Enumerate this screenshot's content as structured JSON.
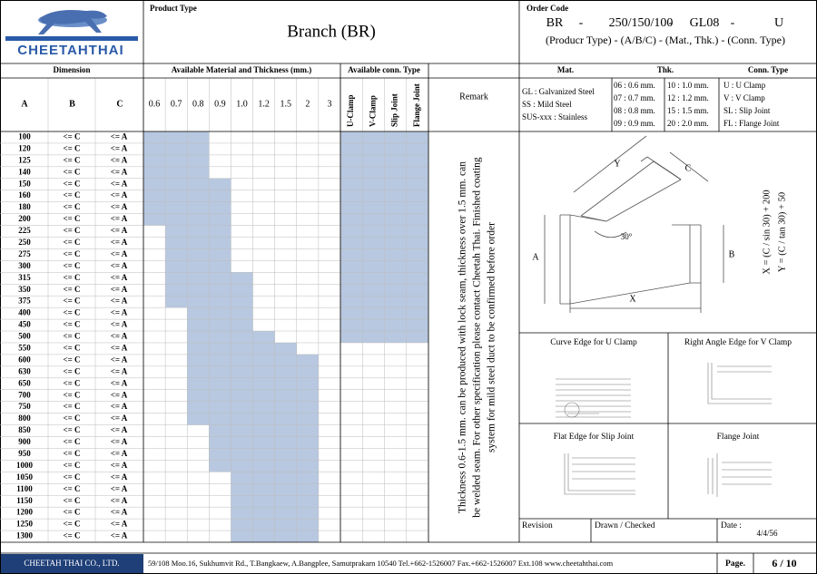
{
  "logo": {
    "brand": "CHEETAHTHAI"
  },
  "product_type": {
    "label": "Product Type",
    "value": "Branch (BR)"
  },
  "order_code": {
    "label": "Order Code",
    "code": [
      "BR",
      "-",
      "250/150/100",
      "-",
      "GL08",
      "-",
      "U"
    ],
    "legend": "(Producr Type) - (A/B/C) - (Mat., Thk.) - (Conn. Type)"
  },
  "table": {
    "headers": {
      "dimension": "Dimension",
      "material": "Available Material and Thickness (mm.)",
      "conn": "Available conn. Type",
      "remark": "Remark"
    },
    "columns": [
      "A",
      "B",
      "C"
    ],
    "thicknesses": [
      "0.6",
      "0.7",
      "0.8",
      "0.9",
      "1.0",
      "1.2",
      "1.5",
      "2",
      "3"
    ],
    "conn_types": [
      "U-Clamp",
      "V-Clamp",
      "Slip Joint",
      "Flange Joint"
    ],
    "rows": [
      {
        "a": "100",
        "b": "<= C",
        "c": "<= A",
        "available": [
          "0.6",
          "0.7",
          "0.8"
        ],
        "conn": true
      },
      {
        "a": "120",
        "b": "<= C",
        "c": "<= A",
        "available": [
          "0.6",
          "0.7",
          "0.8"
        ],
        "conn": true
      },
      {
        "a": "125",
        "b": "<= C",
        "c": "<= A",
        "available": [
          "0.6",
          "0.7",
          "0.8"
        ],
        "conn": true
      },
      {
        "a": "140",
        "b": "<= C",
        "c": "<= A",
        "available": [
          "0.6",
          "0.7",
          "0.8"
        ],
        "conn": true
      },
      {
        "a": "150",
        "b": "<= C",
        "c": "<= A",
        "available": [
          "0.6",
          "0.7",
          "0.8",
          "0.9"
        ],
        "conn": true
      },
      {
        "a": "160",
        "b": "<= C",
        "c": "<= A",
        "available": [
          "0.6",
          "0.7",
          "0.8",
          "0.9"
        ],
        "conn": true
      },
      {
        "a": "180",
        "b": "<= C",
        "c": "<= A",
        "available": [
          "0.6",
          "0.7",
          "0.8",
          "0.9"
        ],
        "conn": true
      },
      {
        "a": "200",
        "b": "<= C",
        "c": "<= A",
        "available": [
          "0.6",
          "0.7",
          "0.8",
          "0.9"
        ],
        "conn": true
      },
      {
        "a": "225",
        "b": "<= C",
        "c": "<= A",
        "available": [
          "0.7",
          "0.8",
          "0.9"
        ],
        "conn": true
      },
      {
        "a": "250",
        "b": "<= C",
        "c": "<= A",
        "available": [
          "0.7",
          "0.8",
          "0.9"
        ],
        "conn": true
      },
      {
        "a": "275",
        "b": "<= C",
        "c": "<= A",
        "available": [
          "0.7",
          "0.8",
          "0.9"
        ],
        "conn": true
      },
      {
        "a": "300",
        "b": "<= C",
        "c": "<= A",
        "available": [
          "0.7",
          "0.8",
          "0.9"
        ],
        "conn": true
      },
      {
        "a": "315",
        "b": "<= C",
        "c": "<= A",
        "available": [
          "0.7",
          "0.8",
          "0.9",
          "1.0"
        ],
        "conn": true
      },
      {
        "a": "350",
        "b": "<= C",
        "c": "<= A",
        "available": [
          "0.7",
          "0.8",
          "0.9",
          "1.0"
        ],
        "conn": true
      },
      {
        "a": "375",
        "b": "<= C",
        "c": "<= A",
        "available": [
          "0.7",
          "0.8",
          "0.9",
          "1.0"
        ],
        "conn": true
      },
      {
        "a": "400",
        "b": "<= C",
        "c": "<= A",
        "available": [
          "0.8",
          "0.9",
          "1.0"
        ],
        "conn": true
      },
      {
        "a": "450",
        "b": "<= C",
        "c": "<= A",
        "available": [
          "0.8",
          "0.9",
          "1.0"
        ],
        "conn": true
      },
      {
        "a": "500",
        "b": "<= C",
        "c": "<= A",
        "available": [
          "0.8",
          "0.9",
          "1.0",
          "1.2"
        ],
        "conn": true
      },
      {
        "a": "550",
        "b": "<= C",
        "c": "<= A",
        "available": [
          "0.8",
          "0.9",
          "1.0",
          "1.2",
          "1.5"
        ],
        "conn": false
      },
      {
        "a": "600",
        "b": "<= C",
        "c": "<= A",
        "available": [
          "0.8",
          "0.9",
          "1.0",
          "1.2",
          "1.5",
          "2"
        ],
        "conn": false
      },
      {
        "a": "630",
        "b": "<= C",
        "c": "<= A",
        "available": [
          "0.8",
          "0.9",
          "1.0",
          "1.2",
          "1.5",
          "2"
        ],
        "conn": false
      },
      {
        "a": "650",
        "b": "<= C",
        "c": "<= A",
        "available": [
          "0.8",
          "0.9",
          "1.0",
          "1.2",
          "1.5",
          "2"
        ],
        "conn": false
      },
      {
        "a": "700",
        "b": "<= C",
        "c": "<= A",
        "available": [
          "0.8",
          "0.9",
          "1.0",
          "1.2",
          "1.5",
          "2"
        ],
        "conn": false
      },
      {
        "a": "750",
        "b": "<= C",
        "c": "<= A",
        "available": [
          "0.8",
          "0.9",
          "1.0",
          "1.2",
          "1.5",
          "2"
        ],
        "conn": false
      },
      {
        "a": "800",
        "b": "<= C",
        "c": "<= A",
        "available": [
          "0.8",
          "0.9",
          "1.0",
          "1.2",
          "1.5",
          "2"
        ],
        "conn": false
      },
      {
        "a": "850",
        "b": "<= C",
        "c": "<= A",
        "available": [
          "0.9",
          "1.0",
          "1.2",
          "1.5",
          "2"
        ],
        "conn": false
      },
      {
        "a": "900",
        "b": "<= C",
        "c": "<= A",
        "available": [
          "0.9",
          "1.0",
          "1.2",
          "1.5",
          "2"
        ],
        "conn": false
      },
      {
        "a": "950",
        "b": "<= C",
        "c": "<= A",
        "available": [
          "0.9",
          "1.0",
          "1.2",
          "1.5",
          "2"
        ],
        "conn": false
      },
      {
        "a": "1000",
        "b": "<= C",
        "c": "<= A",
        "available": [
          "0.9",
          "1.0",
          "1.2",
          "1.5",
          "2"
        ],
        "conn": false
      },
      {
        "a": "1050",
        "b": "<= C",
        "c": "<= A",
        "available": [
          "1.0",
          "1.2",
          "1.5",
          "2"
        ],
        "conn": false
      },
      {
        "a": "1100",
        "b": "<= C",
        "c": "<= A",
        "available": [
          "1.0",
          "1.2",
          "1.5",
          "2"
        ],
        "conn": false
      },
      {
        "a": "1150",
        "b": "<= C",
        "c": "<= A",
        "available": [
          "1.0",
          "1.2",
          "1.5",
          "2"
        ],
        "conn": false
      },
      {
        "a": "1200",
        "b": "<= C",
        "c": "<= A",
        "available": [
          "1.0",
          "1.2",
          "1.5",
          "2"
        ],
        "conn": false
      },
      {
        "a": "1250",
        "b": "<= C",
        "c": "<= A",
        "available": [
          "1.0",
          "1.2",
          "1.5",
          "2"
        ],
        "conn": false
      },
      {
        "a": "1300",
        "b": "<= C",
        "c": "<= A",
        "available": [
          "1.0",
          "1.2",
          "1.5",
          "2"
        ],
        "conn": false
      }
    ],
    "remark": [
      "Thickness 0.6-1.5 mm.  can be produced with lock seam,  thickness over 1.5 mm. can",
      "be welded seam. For other specification please contact Cheetah Thai. Finished coating",
      "system for mild steel duct to be confirmed before order"
    ]
  },
  "spec": {
    "headers": [
      "Mat.",
      "Thk.",
      "Conn. Type"
    ],
    "mat": [
      "GL : Galvanized Steel",
      "SS : Mild Steel",
      "SUS-xxx : Stainless"
    ],
    "thk1": [
      "06 : 0.6 mm.",
      "07 : 0.7 mm.",
      "08 : 0.8 mm.",
      "09 : 0.9 mm."
    ],
    "thk2": [
      "10 : 1.0 mm.",
      "12 : 1.2 mm.",
      "15 : 1.5 mm.",
      "20 : 2.0 mm."
    ],
    "conn": [
      "U : U Clamp",
      "V : V Clamp",
      "SL : Slip Joint",
      "FL : Flange Joint"
    ]
  },
  "drawing": {
    "labels": {
      "y": "Y",
      "c": "C",
      "angle": "30°",
      "a": "A",
      "b": "B",
      "x": "X"
    },
    "formulas": [
      "X = (C / sin 30) + 200",
      "Y = (C / tan 30) + 50"
    ]
  },
  "edges": [
    "Curve Edge for U Clamp",
    "Right Angle Edge for V Clamp",
    "Flat Edge for Slip Joint",
    "Flange Joint"
  ],
  "revision": {
    "revision": "Revision",
    "drawn": "Drawn / Checked",
    "date_label": "Date :",
    "date": "4/4/56"
  },
  "footer": {
    "company": "CHEETAH THAI CO., LTD.",
    "address": "59/108 Moo.16, Sukhumvit Rd., T.Bangkaew, A.Bangplee, Samutprakarn 10540   Tel.+662-1526007 Fax.+662-1526007 Ext.108   www.cheetahthai.com",
    "page_label": "Page.",
    "page": "6 / 10"
  }
}
